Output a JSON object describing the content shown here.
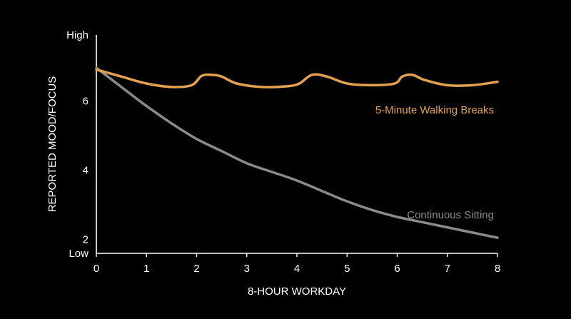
{
  "chart_data": {
    "type": "line",
    "xlabel": "8-HOUR WORKDAY",
    "ylabel": "REPORTED MOOD/FOCUS",
    "xlim": [
      0,
      8
    ],
    "ylim": [
      1.6,
      7.9
    ],
    "x_ticks": [
      "0",
      "1",
      "2",
      "3",
      "4",
      "5",
      "6",
      "7",
      "8"
    ],
    "y_ticks": [
      {
        "value": 7.9,
        "label": "High"
      },
      {
        "value": 6,
        "label": "6"
      },
      {
        "value": 4,
        "label": "4"
      },
      {
        "value": 2,
        "label": "2"
      },
      {
        "value": 1.6,
        "label": "Low"
      }
    ],
    "grid": false,
    "series": [
      {
        "name": "5-Minute Walking Breaks",
        "color": "#e3a04f",
        "x": [
          0,
          0.5,
          1,
          1.5,
          1.9,
          2.1,
          2.3,
          2.5,
          2.8,
          3.3,
          3.8,
          4.05,
          4.3,
          4.6,
          5,
          5.5,
          5.95,
          6.1,
          6.3,
          6.55,
          7,
          7.5,
          8
        ],
        "y": [
          6.9,
          6.7,
          6.5,
          6.4,
          6.45,
          6.72,
          6.75,
          6.7,
          6.5,
          6.4,
          6.42,
          6.5,
          6.75,
          6.7,
          6.5,
          6.45,
          6.5,
          6.7,
          6.75,
          6.6,
          6.45,
          6.45,
          6.55
        ]
      },
      {
        "name": "Continuous Sitting",
        "color": "#8a8a8a",
        "x": [
          0,
          0.5,
          1,
          1.5,
          2,
          2.5,
          3,
          3.5,
          4,
          4.5,
          5,
          5.5,
          6,
          6.5,
          7,
          7.5,
          8
        ],
        "y": [
          6.95,
          6.4,
          5.85,
          5.35,
          4.9,
          4.55,
          4.2,
          3.95,
          3.7,
          3.4,
          3.1,
          2.85,
          2.65,
          2.5,
          2.35,
          2.2,
          2.05
        ]
      }
    ],
    "annotations": [
      {
        "text": "5-Minute Walking Breaks",
        "color": "#e3a04f",
        "series": 0
      },
      {
        "text": "Continuous Sitting",
        "color": "#8a8a8a",
        "series": 1
      }
    ]
  }
}
